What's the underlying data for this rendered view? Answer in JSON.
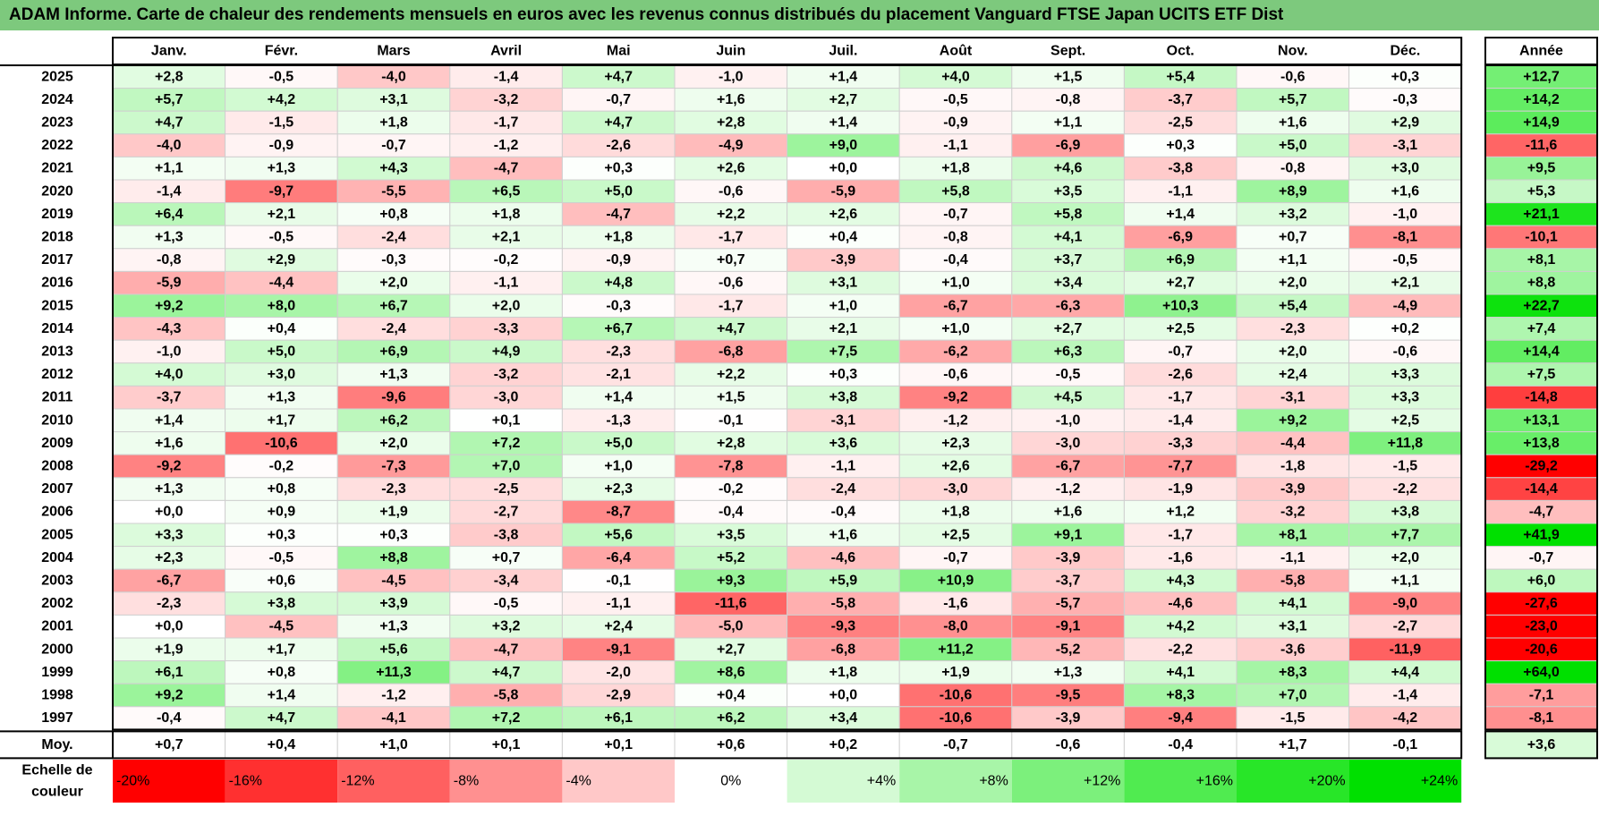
{
  "title": "ADAM Informe. Carte de chaleur des rendements mensuels en euros avec les revenus connus distribués du placement Vanguard FTSE Japan UCITS ETF Dist",
  "chart_data": {
    "type": "heatmap",
    "months": [
      "Janv.",
      "Févr.",
      "Mars",
      "Avril",
      "Mai",
      "Juin",
      "Juil.",
      "Août",
      "Sept.",
      "Oct.",
      "Nov.",
      "Déc."
    ],
    "year_header": "Année",
    "avg_label": "Moy.",
    "rows": [
      {
        "year": "2025",
        "values": [
          "+2,8",
          "-0,5",
          "-4,0",
          "-1,4",
          "+4,7",
          "-1,0",
          "+1,4",
          "+4,0",
          "+1,5",
          "+5,4",
          "-0,6",
          "+0,3"
        ],
        "annual": "+12,7"
      },
      {
        "year": "2024",
        "values": [
          "+5,7",
          "+4,2",
          "+3,1",
          "-3,2",
          "-0,7",
          "+1,6",
          "+2,7",
          "-0,5",
          "-0,8",
          "-3,7",
          "+5,7",
          "-0,3"
        ],
        "annual": "+14,2"
      },
      {
        "year": "2023",
        "values": [
          "+4,7",
          "-1,5",
          "+1,8",
          "-1,7",
          "+4,7",
          "+2,8",
          "+1,4",
          "-0,9",
          "+1,1",
          "-2,5",
          "+1,6",
          "+2,9"
        ],
        "annual": "+14,9"
      },
      {
        "year": "2022",
        "values": [
          "-4,0",
          "-0,9",
          "-0,7",
          "-1,2",
          "-2,6",
          "-4,9",
          "+9,0",
          "-1,1",
          "-6,9",
          "+0,3",
          "+5,0",
          "-3,1"
        ],
        "annual": "-11,6"
      },
      {
        "year": "2021",
        "values": [
          "+1,1",
          "+1,3",
          "+4,3",
          "-4,7",
          "+0,3",
          "+2,6",
          "+0,0",
          "+1,8",
          "+4,6",
          "-3,8",
          "-0,8",
          "+3,0"
        ],
        "annual": "+9,5"
      },
      {
        "year": "2020",
        "values": [
          "-1,4",
          "-9,7",
          "-5,5",
          "+6,5",
          "+5,0",
          "-0,6",
          "-5,9",
          "+5,8",
          "+3,5",
          "-1,1",
          "+8,9",
          "+1,6"
        ],
        "annual": "+5,3"
      },
      {
        "year": "2019",
        "values": [
          "+6,4",
          "+2,1",
          "+0,8",
          "+1,8",
          "-4,7",
          "+2,2",
          "+2,6",
          "-0,7",
          "+5,8",
          "+1,4",
          "+3,2",
          "-1,0"
        ],
        "annual": "+21,1"
      },
      {
        "year": "2018",
        "values": [
          "+1,3",
          "-0,5",
          "-2,4",
          "+2,1",
          "+1,8",
          "-1,7",
          "+0,4",
          "-0,8",
          "+4,1",
          "-6,9",
          "+0,7",
          "-8,1"
        ],
        "annual": "-10,1"
      },
      {
        "year": "2017",
        "values": [
          "-0,8",
          "+2,9",
          "-0,3",
          "-0,2",
          "-0,9",
          "+0,7",
          "-3,9",
          "-0,4",
          "+3,7",
          "+6,9",
          "+1,1",
          "-0,5"
        ],
        "annual": "+8,1"
      },
      {
        "year": "2016",
        "values": [
          "-5,9",
          "-4,4",
          "+2,0",
          "-1,1",
          "+4,8",
          "-0,6",
          "+3,1",
          "+1,0",
          "+3,4",
          "+2,7",
          "+2,0",
          "+2,1"
        ],
        "annual": "+8,8"
      },
      {
        "year": "2015",
        "values": [
          "+9,2",
          "+8,0",
          "+6,7",
          "+2,0",
          "-0,3",
          "-1,7",
          "+1,0",
          "-6,7",
          "-6,3",
          "+10,3",
          "+5,4",
          "-4,9"
        ],
        "annual": "+22,7"
      },
      {
        "year": "2014",
        "values": [
          "-4,3",
          "+0,4",
          "-2,4",
          "-3,3",
          "+6,7",
          "+4,7",
          "+2,1",
          "+1,0",
          "+2,7",
          "+2,5",
          "-2,3",
          "+0,2"
        ],
        "annual": "+7,4"
      },
      {
        "year": "2013",
        "values": [
          "-1,0",
          "+5,0",
          "+6,9",
          "+4,9",
          "-2,3",
          "-6,8",
          "+7,5",
          "-6,2",
          "+6,3",
          "-0,7",
          "+2,0",
          "-0,6"
        ],
        "annual": "+14,4"
      },
      {
        "year": "2012",
        "values": [
          "+4,0",
          "+3,0",
          "+1,3",
          "-3,2",
          "-2,1",
          "+2,2",
          "+0,3",
          "-0,6",
          "-0,5",
          "-2,6",
          "+2,4",
          "+3,3"
        ],
        "annual": "+7,5"
      },
      {
        "year": "2011",
        "values": [
          "-3,7",
          "+1,3",
          "-9,6",
          "-3,0",
          "+1,4",
          "+1,5",
          "+3,8",
          "-9,2",
          "+4,5",
          "-1,7",
          "-3,1",
          "+3,3"
        ],
        "annual": "-14,8"
      },
      {
        "year": "2010",
        "values": [
          "+1,4",
          "+1,7",
          "+6,2",
          "+0,1",
          "-1,3",
          "-0,1",
          "-3,1",
          "-1,2",
          "-1,0",
          "-1,4",
          "+9,2",
          "+2,5"
        ],
        "annual": "+13,1"
      },
      {
        "year": "2009",
        "values": [
          "+1,6",
          "-10,6",
          "+2,0",
          "+7,2",
          "+5,0",
          "+2,8",
          "+3,6",
          "+2,3",
          "-3,0",
          "-3,3",
          "-4,4",
          "+11,8"
        ],
        "annual": "+13,8"
      },
      {
        "year": "2008",
        "values": [
          "-9,2",
          "-0,2",
          "-7,3",
          "+7,0",
          "+1,0",
          "-7,8",
          "-1,1",
          "+2,6",
          "-6,7",
          "-7,7",
          "-1,8",
          "-1,5"
        ],
        "annual": "-29,2"
      },
      {
        "year": "2007",
        "values": [
          "+1,3",
          "+0,8",
          "-2,3",
          "-2,5",
          "+2,3",
          "-0,2",
          "-2,4",
          "-3,0",
          "-1,2",
          "-1,9",
          "-3,9",
          "-2,2"
        ],
        "annual": "-14,4"
      },
      {
        "year": "2006",
        "values": [
          "+0,0",
          "+0,9",
          "+1,9",
          "-2,7",
          "-8,7",
          "-0,4",
          "-0,4",
          "+1,8",
          "+1,6",
          "+1,2",
          "-3,2",
          "+3,8"
        ],
        "annual": "-4,7"
      },
      {
        "year": "2005",
        "values": [
          "+3,3",
          "+0,3",
          "+0,3",
          "-3,8",
          "+5,6",
          "+3,5",
          "+1,6",
          "+2,5",
          "+9,1",
          "-1,7",
          "+8,1",
          "+7,7"
        ],
        "annual": "+41,9"
      },
      {
        "year": "2004",
        "values": [
          "+2,3",
          "-0,5",
          "+8,8",
          "+0,7",
          "-6,4",
          "+5,2",
          "-4,6",
          "-0,7",
          "-3,9",
          "-1,6",
          "-1,1",
          "+2,0"
        ],
        "annual": "-0,7"
      },
      {
        "year": "2003",
        "values": [
          "-6,7",
          "+0,6",
          "-4,5",
          "-3,4",
          "-0,1",
          "+9,3",
          "+5,9",
          "+10,9",
          "-3,7",
          "+4,3",
          "-5,8",
          "+1,1"
        ],
        "annual": "+6,0"
      },
      {
        "year": "2002",
        "values": [
          "-2,3",
          "+3,8",
          "+3,9",
          "-0,5",
          "-1,1",
          "-11,6",
          "-5,8",
          "-1,6",
          "-5,7",
          "-4,6",
          "+4,1",
          "-9,0"
        ],
        "annual": "-27,6"
      },
      {
        "year": "2001",
        "values": [
          "+0,0",
          "-4,5",
          "+1,3",
          "+3,2",
          "+2,4",
          "-5,0",
          "-9,3",
          "-8,0",
          "-9,1",
          "+4,2",
          "+3,1",
          "-2,7"
        ],
        "annual": "-23,0"
      },
      {
        "year": "2000",
        "values": [
          "+1,9",
          "+1,7",
          "+5,6",
          "-4,7",
          "-9,1",
          "+2,7",
          "-6,8",
          "+11,2",
          "-5,2",
          "-2,2",
          "-3,6",
          "-11,9"
        ],
        "annual": "-20,6"
      },
      {
        "year": "1999",
        "values": [
          "+6,1",
          "+0,8",
          "+11,3",
          "+4,7",
          "-2,0",
          "+8,6",
          "+1,8",
          "+1,9",
          "+1,3",
          "+4,1",
          "+8,3",
          "+4,4"
        ],
        "annual": "+64,0"
      },
      {
        "year": "1998",
        "values": [
          "+9,2",
          "+1,4",
          "-1,2",
          "-5,8",
          "-2,9",
          "+0,4",
          "+0,0",
          "-10,6",
          "-9,5",
          "+8,3",
          "+7,0",
          "-1,4"
        ],
        "annual": "-7,1"
      },
      {
        "year": "1997",
        "values": [
          "-0,4",
          "+4,7",
          "-4,1",
          "+7,2",
          "+6,1",
          "+6,2",
          "+3,4",
          "-10,6",
          "-3,9",
          "-9,4",
          "-1,5",
          "-4,2"
        ],
        "annual": "-8,1"
      }
    ],
    "averages": [
      "+0,7",
      "+0,4",
      "+1,0",
      "+0,1",
      "+0,1",
      "+0,6",
      "+0,2",
      "-0,7",
      "-0,6",
      "-0,4",
      "+1,7",
      "-0,1"
    ],
    "average_annual": "+3,6",
    "scale_label_line1": "Echelle de",
    "scale_label_line2": "couleur",
    "scale": [
      {
        "label": "-20%",
        "value": -20,
        "color": "#ff0000"
      },
      {
        "label": "-16%",
        "value": -16,
        "color": "#ff3030"
      },
      {
        "label": "-12%",
        "value": -12,
        "color": "#ff6060"
      },
      {
        "label": "-8%",
        "value": -8,
        "color": "#ff9090"
      },
      {
        "label": "-4%",
        "value": -4,
        "color": "#ffc8c8"
      },
      {
        "label": "0%",
        "value": 0,
        "color": "#ffffff"
      },
      {
        "label": "+4%",
        "value": 4,
        "color": "#d4fad4"
      },
      {
        "label": "+8%",
        "value": 8,
        "color": "#a8f5a8"
      },
      {
        "label": "+12%",
        "value": 12,
        "color": "#7cf07c"
      },
      {
        "label": "+16%",
        "value": 16,
        "color": "#50eb50"
      },
      {
        "label": "+20%",
        "value": 20,
        "color": "#28e628"
      },
      {
        "label": "+24%",
        "value": 24,
        "color": "#00e000"
      }
    ]
  }
}
